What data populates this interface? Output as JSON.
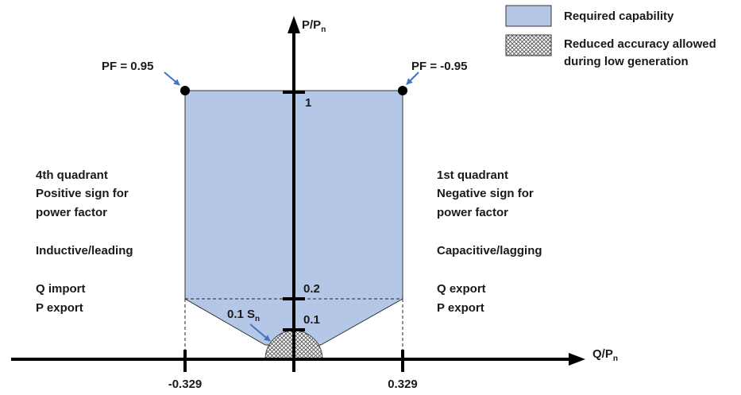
{
  "axes": {
    "y_label_main": "P/P",
    "y_label_sub": "n",
    "x_label_main": "Q/P",
    "x_label_sub": "n",
    "x_ticks": [
      "-0.329",
      "0.329"
    ],
    "y_ticks": [
      "1",
      "0.2",
      "0.1"
    ]
  },
  "points": {
    "left": "PF = 0.95",
    "right": "PF = -0.95"
  },
  "s_label_main": "0.1 S",
  "s_label_sub": "n",
  "left_quadrant": {
    "lines": [
      "4th quadrant",
      "Positive sign for",
      "power factor",
      "Inductive/leading",
      "Q import",
      "P export"
    ]
  },
  "right_quadrant": {
    "lines": [
      "1st quadrant",
      "Negative sign for",
      "power factor",
      "Capacitive/lagging",
      "Q export",
      "P export"
    ]
  },
  "legend": {
    "items": [
      {
        "label": "Required capability"
      },
      {
        "label_line1": "Reduced accuracy allowed",
        "label_line2": "during low generation"
      }
    ]
  },
  "colors": {
    "region_fill": "#b4c7e7",
    "arrow_blue": "#4472c4",
    "axis": "#000000"
  }
}
